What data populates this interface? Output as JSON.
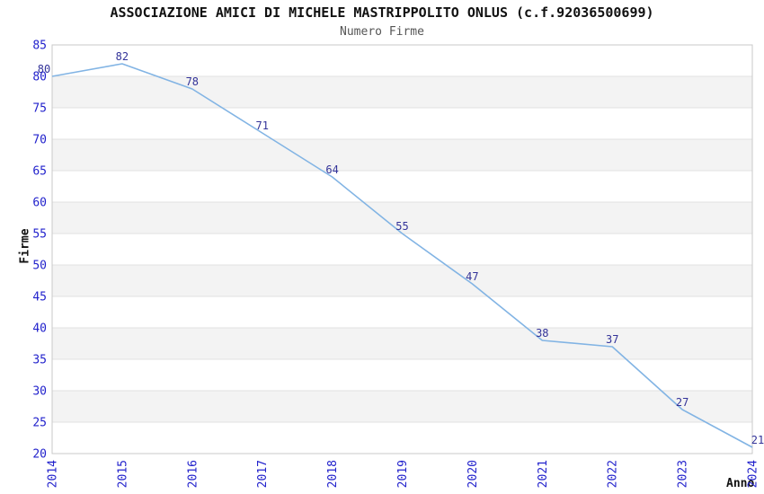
{
  "chart_data": {
    "type": "line",
    "title": "ASSOCIAZIONE AMICI DI MICHELE MASTRIPPOLITO ONLUS (c.f.92036500699)",
    "subtitle": "Numero Firme",
    "xlabel": "Anno",
    "ylabel": "Firme",
    "x": [
      "2014",
      "2015",
      "2016",
      "2017",
      "2018",
      "2019",
      "2020",
      "2021",
      "2022",
      "2023",
      "2024"
    ],
    "values": [
      80,
      82,
      78,
      71,
      64,
      55,
      47,
      38,
      37,
      27,
      21
    ],
    "ylim": [
      20,
      85
    ],
    "ytick_step": 5,
    "grid": "horizontal",
    "band_fill": "alternating horizontal bands every 5 units",
    "legend": "none",
    "markers": "none",
    "point_labels": [
      80,
      82,
      78,
      71,
      64,
      55,
      47,
      38,
      37,
      27,
      21
    ],
    "colors": {
      "line": "#82b4e4",
      "band": "#f3f3f3",
      "gridline": "#e2e2e2",
      "plot_border": "#c9c9c9",
      "tick_label": "#2222cc",
      "point_label": "#333399",
      "title": "#111111",
      "subtitle": "#555555",
      "axis_label": "#111111",
      "background": "#ffffff"
    }
  }
}
